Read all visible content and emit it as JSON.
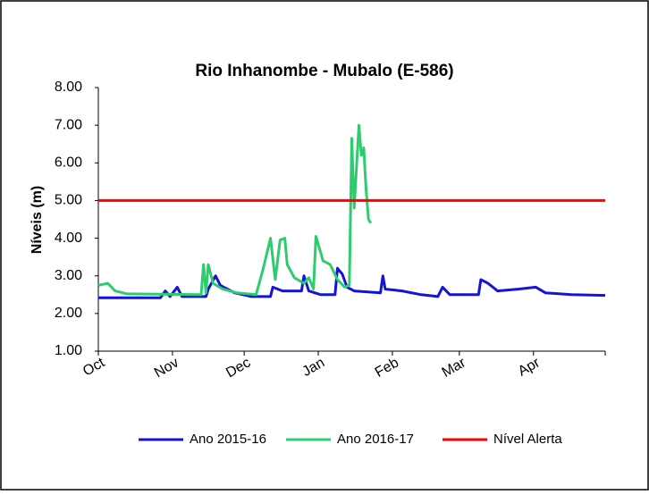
{
  "chart_data": {
    "type": "line",
    "title": "Rio Inhanombe - Mubalo (E-586)",
    "y_label": "Níveis (m)",
    "xlim": [
      0,
      212
    ],
    "xticks": [
      {
        "value": 0,
        "label": "Oct"
      },
      {
        "value": 31,
        "label": "Nov"
      },
      {
        "value": 61,
        "label": "Dec"
      },
      {
        "value": 92,
        "label": "Jan"
      },
      {
        "value": 123,
        "label": "Feb"
      },
      {
        "value": 151,
        "label": "Mar"
      },
      {
        "value": 182,
        "label": "Apr"
      }
    ],
    "ylim": [
      1,
      8
    ],
    "yticks": [
      {
        "value": 1,
        "label": "1.00"
      },
      {
        "value": 2,
        "label": "2.00"
      },
      {
        "value": 3,
        "label": "3.00"
      },
      {
        "value": 4,
        "label": "4.00"
      },
      {
        "value": 5,
        "label": "5.00"
      },
      {
        "value": 6,
        "label": "6.00"
      },
      {
        "value": 7,
        "label": "7.00"
      },
      {
        "value": 8,
        "label": "8.00"
      }
    ],
    "grid": false,
    "legend": "bottom",
    "series": [
      {
        "name": "Ano 2015-16",
        "color": "#1414d8",
        "x": [
          0,
          26,
          28,
          30,
          33,
          35,
          45,
          46,
          49,
          51,
          54,
          57,
          64,
          72,
          73,
          77,
          85,
          86,
          88,
          93,
          99,
          100,
          102,
          104,
          107,
          118,
          119,
          120,
          127,
          135,
          142,
          144,
          147,
          159,
          160,
          163,
          167,
          176,
          183,
          187,
          198,
          212
        ],
        "values": [
          2.42,
          2.42,
          2.6,
          2.45,
          2.7,
          2.45,
          2.45,
          2.65,
          3.0,
          2.75,
          2.65,
          2.55,
          2.45,
          2.45,
          2.7,
          2.6,
          2.6,
          3.0,
          2.6,
          2.5,
          2.5,
          3.2,
          3.05,
          2.7,
          2.6,
          2.55,
          3.0,
          2.65,
          2.6,
          2.5,
          2.45,
          2.7,
          2.5,
          2.5,
          2.9,
          2.8,
          2.6,
          2.65,
          2.7,
          2.55,
          2.5,
          2.48
        ]
      },
      {
        "name": "Ano 2016-17",
        "color": "#2ecc6e",
        "x": [
          0,
          4,
          7,
          12,
          43,
          44,
          45,
          46,
          48,
          52,
          58,
          66,
          69,
          72,
          74,
          76,
          78,
          79,
          82,
          86,
          88,
          90,
          91,
          94,
          97,
          100,
          103,
          105,
          106,
          107,
          109,
          110,
          111,
          112,
          113,
          114
        ],
        "values": [
          2.75,
          2.8,
          2.6,
          2.52,
          2.5,
          3.3,
          2.55,
          3.3,
          2.8,
          2.65,
          2.55,
          2.5,
          3.2,
          4.0,
          2.9,
          3.95,
          4.0,
          3.3,
          2.95,
          2.8,
          2.95,
          2.65,
          4.05,
          3.4,
          3.3,
          2.9,
          2.7,
          2.75,
          6.65,
          4.8,
          7.0,
          6.2,
          6.4,
          5.3,
          4.5,
          4.4
        ]
      },
      {
        "name": "Nível Alerta",
        "color": "#ff0000",
        "x": [
          0,
          212
        ],
        "values": [
          5,
          5
        ]
      }
    ]
  }
}
